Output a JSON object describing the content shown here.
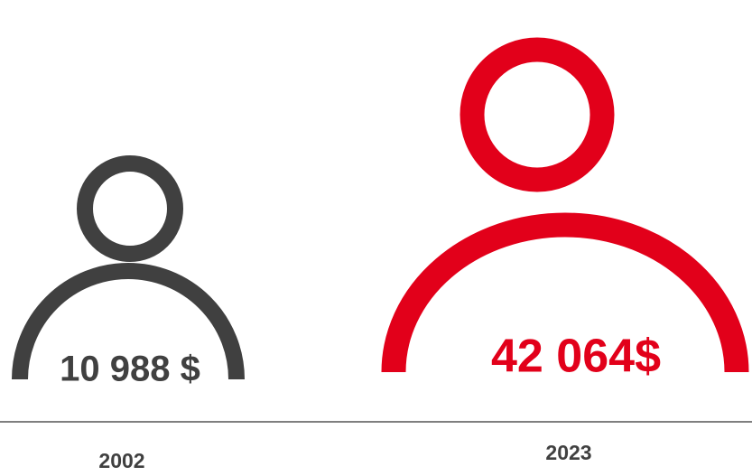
{
  "items": [
    {
      "year": "2002",
      "amount": "10 988 $",
      "color": "#404040"
    },
    {
      "year": "2023",
      "amount": "42 064$",
      "color": "#e2001a"
    }
  ]
}
